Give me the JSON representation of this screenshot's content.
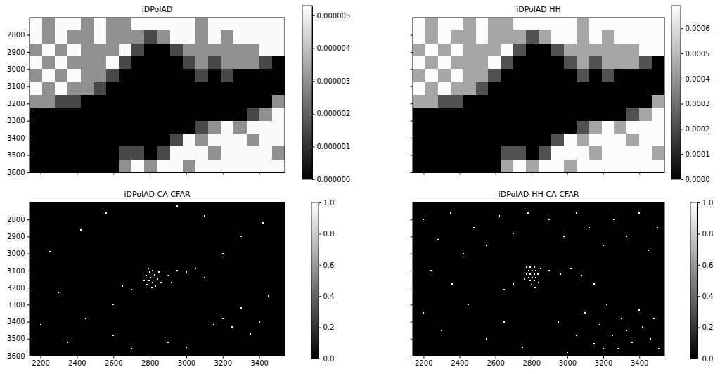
{
  "chart_data": [
    {
      "type": "heatmap",
      "title": "iDPolAD",
      "color": "gray",
      "tick_labels": "y",
      "xlim": [
        2140,
        3540
      ],
      "ylim": [
        3600,
        2700
      ],
      "xticks": [
        2200,
        2400,
        2600,
        2800,
        3000,
        3200,
        3400
      ],
      "yticks": [
        2800,
        2900,
        3000,
        3100,
        3200,
        3300,
        3400,
        3500,
        3600
      ],
      "x_edges": [
        2140,
        2210,
        2280,
        2350,
        2420,
        2490,
        2560,
        2630,
        2700,
        2770,
        2840,
        2910,
        2980,
        3050,
        3120,
        3190,
        3260,
        3330,
        3400,
        3470,
        3540
      ],
      "y_edges": [
        2700,
        2775,
        2850,
        2925,
        3000,
        3075,
        3150,
        3225,
        3300,
        3375,
        3450,
        3525,
        3600
      ],
      "cells": [
        [
          5.2e-06,
          3e-06,
          5.2e-06,
          5.2e-06,
          3e-06,
          5.2e-06,
          3e-06,
          3e-06,
          5.2e-06,
          5.2e-06,
          5.2e-06,
          5.2e-06,
          5.2e-06,
          3e-06,
          5.2e-06,
          5.2e-06,
          5.2e-06,
          5.2e-06,
          5.2e-06,
          5.2e-06
        ],
        [
          5.2e-06,
          3e-06,
          5.2e-06,
          3e-06,
          3e-06,
          5.2e-06,
          3e-06,
          3e-06,
          3e-06,
          1.5e-06,
          3e-06,
          5.2e-06,
          5.2e-06,
          3e-06,
          5.2e-06,
          3e-06,
          5.2e-06,
          5.2e-06,
          5.2e-06,
          5.2e-06
        ],
        [
          3e-06,
          5.2e-06,
          3e-06,
          5.2e-06,
          3e-06,
          3e-06,
          3e-06,
          5.2e-06,
          1.5e-06,
          0,
          0,
          1.5e-06,
          3e-06,
          3e-06,
          3e-06,
          3e-06,
          3e-06,
          3e-06,
          5.2e-06,
          5.2e-06
        ],
        [
          5.2e-06,
          3e-06,
          5.2e-06,
          3e-06,
          3e-06,
          3e-06,
          5.2e-06,
          1.5e-06,
          0,
          0,
          0,
          0,
          1.5e-06,
          3e-06,
          1.5e-06,
          3e-06,
          3e-06,
          3e-06,
          1.5e-06,
          0
        ],
        [
          3e-06,
          5.2e-06,
          3e-06,
          5.2e-06,
          3e-06,
          3e-06,
          1.5e-06,
          0,
          0,
          0,
          0,
          0,
          0,
          1.5e-06,
          0,
          1.5e-06,
          0,
          0,
          0,
          0
        ],
        [
          5.2e-06,
          3e-06,
          5.2e-06,
          3e-06,
          3e-06,
          1.5e-06,
          0,
          0,
          0,
          0,
          0,
          0,
          0,
          0,
          0,
          0,
          0,
          0,
          0,
          0
        ],
        [
          3e-06,
          3e-06,
          1.5e-06,
          1.5e-06,
          0,
          0,
          0,
          0,
          0,
          0,
          0,
          0,
          0,
          0,
          0,
          0,
          0,
          0,
          0,
          3e-06
        ],
        [
          0,
          0,
          0,
          0,
          0,
          0,
          0,
          0,
          0,
          0,
          0,
          0,
          0,
          0,
          0,
          0,
          0,
          1.5e-06,
          3e-06,
          5.2e-06
        ],
        [
          0,
          0,
          0,
          0,
          0,
          0,
          0,
          0,
          0,
          0,
          0,
          0,
          0,
          1.5e-06,
          3e-06,
          5.2e-06,
          3e-06,
          5.2e-06,
          5.2e-06,
          5.2e-06
        ],
        [
          0,
          0,
          0,
          0,
          0,
          0,
          0,
          0,
          0,
          0,
          0,
          1.5e-06,
          5.2e-06,
          3e-06,
          5.2e-06,
          5.2e-06,
          5.2e-06,
          3e-06,
          5.2e-06,
          5.2e-06
        ],
        [
          0,
          0,
          0,
          0,
          0,
          0,
          0,
          1.5e-06,
          1.5e-06,
          0,
          1.5e-06,
          5.2e-06,
          5.2e-06,
          5.2e-06,
          3e-06,
          5.2e-06,
          5.2e-06,
          5.2e-06,
          5.2e-06,
          3e-06
        ],
        [
          0,
          0,
          0,
          0,
          0,
          0,
          0,
          3e-06,
          5.2e-06,
          3e-06,
          5.2e-06,
          5.2e-06,
          3e-06,
          5.2e-06,
          5.2e-06,
          5.2e-06,
          5.2e-06,
          5.2e-06,
          5.2e-06,
          5.2e-06
        ]
      ],
      "clim": [
        0,
        5.3e-06
      ],
      "cticks": [
        {
          "value": 0,
          "label": "0.000000"
        },
        {
          "value": 1e-06,
          "label": "0.000001"
        },
        {
          "value": 2e-06,
          "label": "0.000002"
        },
        {
          "value": 3e-06,
          "label": "0.000003"
        },
        {
          "value": 4e-06,
          "label": "0.000004"
        },
        {
          "value": 5e-06,
          "label": "0.000005"
        }
      ]
    },
    {
      "type": "heatmap",
      "title": "iDPolAD HH",
      "color": "gray",
      "tick_labels": false,
      "xlim": [
        2140,
        3540
      ],
      "ylim": [
        3600,
        2700
      ],
      "xticks": [
        2200,
        2400,
        2600,
        2800,
        3000,
        3200,
        3400
      ],
      "yticks": [
        2800,
        2900,
        3000,
        3100,
        3200,
        3300,
        3400,
        3500,
        3600
      ],
      "x_edges": [
        2140,
        2210,
        2280,
        2350,
        2420,
        2490,
        2560,
        2630,
        2700,
        2770,
        2840,
        2910,
        2980,
        3050,
        3120,
        3190,
        3260,
        3330,
        3400,
        3470,
        3540
      ],
      "y_edges": [
        2700,
        2775,
        2850,
        2925,
        3000,
        3075,
        3150,
        3225,
        3300,
        3375,
        3450,
        3525,
        3600
      ],
      "cells": [
        [
          0.00068,
          0.00045,
          0.00068,
          0.00068,
          0.00045,
          0.00068,
          0.00045,
          0.00045,
          0.00068,
          0.00068,
          0.00068,
          0.00068,
          0.00068,
          0.00045,
          0.00068,
          0.00068,
          0.00068,
          0.00068,
          0.00068,
          0.00068
        ],
        [
          0.00068,
          0.00045,
          0.00068,
          0.00045,
          0.00045,
          0.00068,
          0.00045,
          0.00045,
          0.00045,
          0.00022,
          0.00045,
          0.00068,
          0.00068,
          0.00045,
          0.00068,
          0.00045,
          0.00068,
          0.00068,
          0.00068,
          0.00068
        ],
        [
          0.00045,
          0.00068,
          0.00045,
          0.00068,
          0.00045,
          0.00045,
          0.00045,
          0.00068,
          0.00022,
          0,
          0,
          0.00022,
          0.00045,
          0.00045,
          0.00045,
          0.00045,
          0.00045,
          0.00045,
          0.00068,
          0.00068
        ],
        [
          0.00068,
          0.00045,
          0.00068,
          0.00045,
          0.00045,
          0.00045,
          0.00068,
          0.00022,
          0,
          0,
          0,
          0,
          0.00022,
          0.00045,
          0.00022,
          0.00045,
          0.00045,
          0.00045,
          0.00022,
          0
        ],
        [
          0.00045,
          0.00068,
          0.00045,
          0.00068,
          0.00045,
          0.00045,
          0.00022,
          0,
          0,
          0,
          0,
          0,
          0,
          0.00022,
          0,
          0.00022,
          0,
          0,
          0,
          0
        ],
        [
          0.00068,
          0.00045,
          0.00068,
          0.00045,
          0.00045,
          0.00022,
          0,
          0,
          0,
          0,
          0,
          0,
          0,
          0,
          0,
          0,
          0,
          0,
          0,
          0
        ],
        [
          0.00045,
          0.00045,
          0.00022,
          0.00022,
          0,
          0,
          0,
          0,
          0,
          0,
          0,
          0,
          0,
          0,
          0,
          0,
          0,
          0,
          0,
          0.00045
        ],
        [
          0,
          0,
          0,
          0,
          0,
          0,
          0,
          0,
          0,
          0,
          0,
          0,
          0,
          0,
          0,
          0,
          0,
          0.00022,
          0.00045,
          0.00068
        ],
        [
          0,
          0,
          0,
          0,
          0,
          0,
          0,
          0,
          0,
          0,
          0,
          0,
          0,
          0.00022,
          0.00045,
          0.00068,
          0.00045,
          0.00068,
          0.00068,
          0.00068
        ],
        [
          0,
          0,
          0,
          0,
          0,
          0,
          0,
          0,
          0,
          0,
          0,
          0.00022,
          0.00068,
          0.00045,
          0.00068,
          0.00068,
          0.00068,
          0.00045,
          0.00068,
          0.00068
        ],
        [
          0,
          0,
          0,
          0,
          0,
          0,
          0,
          0.00022,
          0.00022,
          0,
          0.00022,
          0.00068,
          0.00068,
          0.00068,
          0.00045,
          0.00068,
          0.00068,
          0.00068,
          0.00068,
          0.00045
        ],
        [
          0,
          0,
          0,
          0,
          0,
          0,
          0,
          0.00045,
          0.00068,
          0.00045,
          0.00068,
          0.00068,
          0.00045,
          0.00068,
          0.00068,
          0.00068,
          0.00068,
          0.00068,
          0.00068,
          0.00068
        ]
      ],
      "clim": [
        0,
        0.00069
      ],
      "cticks": [
        {
          "value": 0,
          "label": "0.0000"
        },
        {
          "value": 0.0001,
          "label": "0.0001"
        },
        {
          "value": 0.0002,
          "label": "0.0002"
        },
        {
          "value": 0.0003,
          "label": "0.0003"
        },
        {
          "value": 0.0004,
          "label": "0.0004"
        },
        {
          "value": 0.0005,
          "label": "0.0005"
        },
        {
          "value": 0.0006,
          "label": "0.0006"
        }
      ]
    },
    {
      "type": "heatmap",
      "title": "iDPolAD CA-CFAR",
      "color": "gray",
      "tick_labels": true,
      "xlim": [
        2140,
        3540
      ],
      "ylim": [
        3600,
        2700
      ],
      "xticks": [
        2200,
        2400,
        2600,
        2800,
        3000,
        3200,
        3400
      ],
      "yticks": [
        2800,
        2900,
        3000,
        3100,
        3200,
        3300,
        3400,
        3500,
        3600
      ],
      "detections": {
        "x": [
          2790,
          2800,
          2815,
          2780,
          2805,
          2825,
          2795,
          2815,
          2840,
          2785,
          2810,
          2830,
          2850,
          2770,
          2860,
          2900,
          2950,
          3000,
          3050,
          2920,
          3100,
          2700,
          2650,
          2250,
          2420,
          2300,
          2560,
          2200,
          2350,
          2450,
          2600,
          2700,
          2900,
          3000,
          3150,
          3200,
          3250,
          3300,
          3350,
          3400,
          3450,
          3200,
          3300,
          3420,
          3100,
          2950,
          2600
        ],
        "y": [
          3090,
          3110,
          3100,
          3130,
          3140,
          3125,
          3160,
          3170,
          3150,
          3185,
          3200,
          3190,
          3110,
          3160,
          3170,
          3130,
          3100,
          3110,
          3090,
          3170,
          3140,
          3210,
          3190,
          2990,
          2860,
          3230,
          2760,
          3420,
          3520,
          3380,
          3480,
          3560,
          3520,
          3550,
          3420,
          3380,
          3430,
          3320,
          3470,
          3400,
          3250,
          3000,
          2900,
          2820,
          2780,
          2720,
          3300
        ],
        "values": [
          1,
          1,
          1,
          1,
          1,
          1,
          1,
          1,
          1,
          1,
          1,
          1,
          1,
          1,
          1,
          1,
          1,
          1,
          1,
          1,
          1,
          1,
          1,
          1,
          1,
          1,
          1,
          1,
          1,
          1,
          1,
          1,
          1,
          1,
          1,
          1,
          1,
          1,
          1,
          1,
          1,
          1,
          1,
          1,
          1,
          1,
          1
        ]
      },
      "clim": [
        0,
        1
      ],
      "cticks": [
        {
          "value": 0,
          "label": "0.0"
        },
        {
          "value": 0.2,
          "label": "0.2"
        },
        {
          "value": 0.4,
          "label": "0.4"
        },
        {
          "value": 0.6,
          "label": "0.6"
        },
        {
          "value": 0.8,
          "label": "0.8"
        },
        {
          "value": 1,
          "label": "1.0"
        }
      ]
    },
    {
      "type": "heatmap",
      "title": "iDPolAD-HH CA-CFAR",
      "color": "gray",
      "tick_labels": "x",
      "xlim": [
        2140,
        3540
      ],
      "ylim": [
        3600,
        2700
      ],
      "xticks": [
        2200,
        2400,
        2600,
        2800,
        3000,
        3200,
        3400
      ],
      "yticks": [
        2800,
        2900,
        3000,
        3100,
        3200,
        3300,
        3400,
        3500,
        3600
      ],
      "detections": {
        "x": [
          2775,
          2795,
          2815,
          2785,
          2805,
          2825,
          2775,
          2795,
          2815,
          2835,
          2785,
          2805,
          2825,
          2795,
          2815,
          2840,
          2800,
          2820,
          2850,
          2760,
          2900,
          2960,
          3020,
          3080,
          2700,
          2650,
          3150,
          2200,
          2280,
          2350,
          2420,
          2480,
          2550,
          2620,
          2700,
          2780,
          2900,
          2980,
          3050,
          3120,
          3200,
          3260,
          3330,
          3400,
          3450,
          3500,
          2240,
          2360,
          2200,
          2300,
          2450,
          2550,
          2650,
          2750,
          2950,
          3050,
          3100,
          3150,
          3180,
          3220,
          3250,
          3280,
          3300,
          3330,
          3360,
          3400,
          3420,
          3460,
          3480,
          3510,
          3200,
          3000
        ],
        "y": [
          3080,
          3080,
          3080,
          3100,
          3100,
          3100,
          3120,
          3120,
          3120,
          3120,
          3140,
          3140,
          3140,
          3160,
          3160,
          3170,
          3185,
          3200,
          3090,
          3150,
          3100,
          3120,
          3090,
          3130,
          3180,
          3210,
          3180,
          2800,
          2920,
          2760,
          3000,
          2850,
          2950,
          2780,
          2880,
          2760,
          2800,
          2900,
          2760,
          2850,
          2950,
          2800,
          2900,
          2760,
          2980,
          2850,
          3100,
          3180,
          3350,
          3450,
          3300,
          3500,
          3400,
          3550,
          3400,
          3480,
          3350,
          3530,
          3420,
          3300,
          3480,
          3560,
          3380,
          3450,
          3520,
          3330,
          3430,
          3500,
          3380,
          3560,
          3560,
          3580
        ],
        "values": [
          1,
          1,
          1,
          1,
          1,
          1,
          1,
          1,
          1,
          1,
          1,
          1,
          1,
          1,
          1,
          1,
          1,
          1,
          1,
          1,
          1,
          1,
          1,
          1,
          1,
          1,
          1,
          1,
          1,
          1,
          1,
          1,
          1,
          1,
          1,
          1,
          1,
          1,
          1,
          1,
          1,
          1,
          1,
          1,
          1,
          1,
          1,
          1,
          1,
          1,
          1,
          1,
          1,
          1,
          1,
          1,
          1,
          1,
          1,
          1,
          1,
          1,
          1,
          1,
          1,
          1,
          1,
          1,
          1,
          1,
          1,
          1
        ]
      },
      "clim": [
        0,
        1
      ],
      "cticks": [
        {
          "value": 0,
          "label": "0.0"
        },
        {
          "value": 0.2,
          "label": "0.2"
        },
        {
          "value": 0.4,
          "label": "0.4"
        },
        {
          "value": 0.6,
          "label": "0.6"
        },
        {
          "value": 0.8,
          "label": "0.8"
        },
        {
          "value": 1,
          "label": "1.0"
        }
      ]
    }
  ]
}
